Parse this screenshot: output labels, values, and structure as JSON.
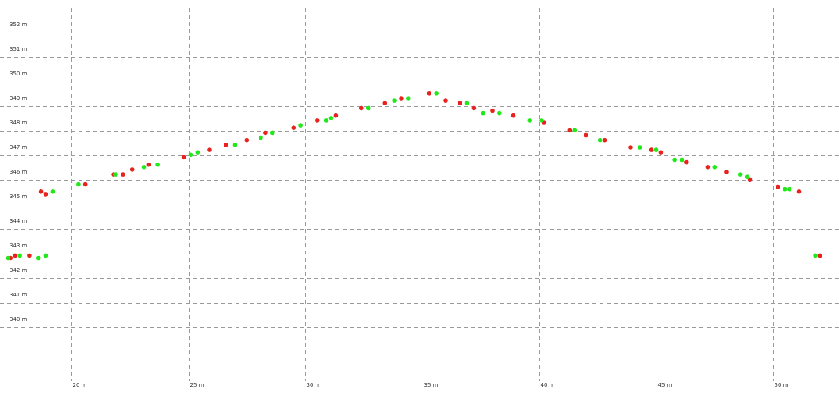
{
  "chart_data": {
    "type": "scatter",
    "title": "",
    "xlabel": "",
    "ylabel": "",
    "xlim": [
      17.2,
      53
    ],
    "ylim": [
      338.8,
      352.9
    ],
    "grid": true,
    "x_ticks": [
      {
        "value": 20,
        "label": "20 m"
      },
      {
        "value": 25,
        "label": "25 m"
      },
      {
        "value": 30,
        "label": "30 m"
      },
      {
        "value": 35,
        "label": "35 m"
      },
      {
        "value": 40,
        "label": "40 m"
      },
      {
        "value": 45,
        "label": "45 m"
      },
      {
        "value": 50,
        "label": "50 m"
      }
    ],
    "y_ticks": [
      {
        "value": 352,
        "label": "352 m"
      },
      {
        "value": 351,
        "label": "351 m"
      },
      {
        "value": 350,
        "label": "350 m"
      },
      {
        "value": 349,
        "label": "349 m"
      },
      {
        "value": 348,
        "label": "348 m"
      },
      {
        "value": 347,
        "label": "347 m"
      },
      {
        "value": 346,
        "label": "346 m"
      },
      {
        "value": 345,
        "label": "345 m"
      },
      {
        "value": 344,
        "label": "344 m"
      },
      {
        "value": 343,
        "label": "343 m"
      },
      {
        "value": 342,
        "label": "342 m"
      },
      {
        "value": 341,
        "label": "341 m"
      },
      {
        "value": 340,
        "label": "340 m"
      }
    ],
    "series": [
      {
        "color": "#e8231e",
        "points": [
          [
            17.4,
            342.5
          ],
          [
            17.6,
            342.6
          ],
          [
            18.2,
            342.6
          ],
          [
            18.7,
            345.2
          ],
          [
            18.9,
            345.1
          ],
          [
            20.6,
            345.5
          ],
          [
            21.8,
            345.9
          ],
          [
            22.2,
            345.9
          ],
          [
            22.6,
            346.1
          ],
          [
            23.3,
            346.3
          ],
          [
            24.8,
            346.6
          ],
          [
            25.9,
            346.9
          ],
          [
            26.6,
            347.1
          ],
          [
            27.5,
            347.3
          ],
          [
            28.3,
            347.6
          ],
          [
            29.5,
            347.8
          ],
          [
            30.5,
            348.1
          ],
          [
            31.3,
            348.3
          ],
          [
            32.4,
            348.6
          ],
          [
            33.4,
            348.8
          ],
          [
            34.1,
            349.0
          ],
          [
            35.3,
            349.2
          ],
          [
            36.0,
            348.9
          ],
          [
            36.6,
            348.8
          ],
          [
            37.2,
            348.6
          ],
          [
            38.0,
            348.5
          ],
          [
            38.9,
            348.3
          ],
          [
            40.2,
            348.0
          ],
          [
            41.3,
            347.7
          ],
          [
            42.0,
            347.5
          ],
          [
            42.8,
            347.3
          ],
          [
            43.9,
            347.0
          ],
          [
            44.8,
            346.9
          ],
          [
            45.2,
            346.8
          ],
          [
            46.3,
            346.4
          ],
          [
            47.2,
            346.2
          ],
          [
            48.0,
            346.0
          ],
          [
            49.0,
            345.7
          ],
          [
            50.2,
            345.4
          ],
          [
            51.1,
            345.2
          ],
          [
            52.0,
            342.6
          ]
        ]
      },
      {
        "color": "#22e81a",
        "points": [
          [
            17.3,
            342.5
          ],
          [
            17.8,
            342.6
          ],
          [
            18.6,
            342.5
          ],
          [
            18.9,
            342.6
          ],
          [
            19.2,
            345.2
          ],
          [
            20.3,
            345.5
          ],
          [
            21.9,
            345.9
          ],
          [
            23.1,
            346.2
          ],
          [
            23.7,
            346.3
          ],
          [
            25.1,
            346.7
          ],
          [
            25.4,
            346.8
          ],
          [
            27.0,
            347.1
          ],
          [
            28.1,
            347.4
          ],
          [
            28.6,
            347.6
          ],
          [
            29.8,
            347.9
          ],
          [
            30.9,
            348.1
          ],
          [
            31.1,
            348.2
          ],
          [
            32.7,
            348.6
          ],
          [
            33.8,
            348.9
          ],
          [
            34.4,
            349.0
          ],
          [
            35.6,
            349.2
          ],
          [
            36.9,
            348.8
          ],
          [
            37.6,
            348.4
          ],
          [
            38.3,
            348.4
          ],
          [
            39.6,
            348.1
          ],
          [
            40.1,
            348.1
          ],
          [
            41.5,
            347.7
          ],
          [
            42.6,
            347.3
          ],
          [
            44.3,
            347.0
          ],
          [
            45.0,
            346.9
          ],
          [
            45.8,
            346.5
          ],
          [
            46.1,
            346.5
          ],
          [
            47.5,
            346.2
          ],
          [
            48.6,
            345.9
          ],
          [
            48.9,
            345.8
          ],
          [
            50.5,
            345.3
          ],
          [
            50.7,
            345.3
          ],
          [
            51.8,
            342.6
          ]
        ]
      }
    ]
  }
}
